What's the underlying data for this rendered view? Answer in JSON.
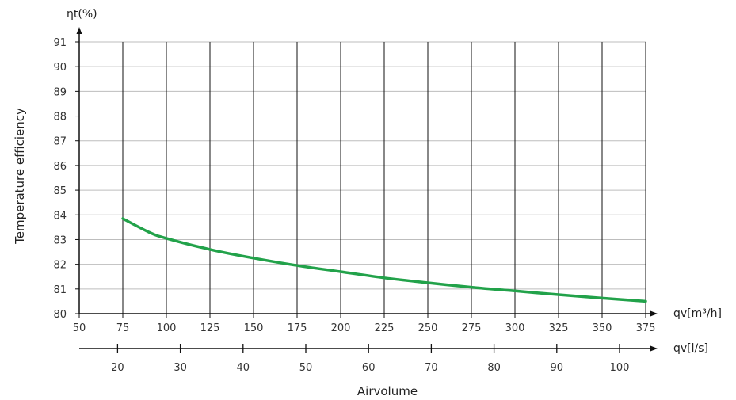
{
  "chart_data": {
    "type": "line",
    "ylabel": "Temperature efficiency",
    "y_unit_label": "ηt(%)",
    "xlabel": "Airvolume",
    "x_primary_unit": "qv[m³/h]",
    "x_secondary_unit": "qv[l/s]",
    "xlim": [
      50,
      375
    ],
    "ylim": [
      80,
      91
    ],
    "x_ticks": [
      50,
      75,
      100,
      125,
      150,
      175,
      200,
      225,
      250,
      275,
      300,
      325,
      350,
      375
    ],
    "y_ticks": [
      80,
      81,
      82,
      83,
      84,
      85,
      86,
      87,
      88,
      89,
      90,
      91
    ],
    "x2_ticks": [
      20,
      30,
      40,
      50,
      60,
      70,
      80,
      90,
      100
    ],
    "grid": true,
    "series": [
      {
        "color": "#22a24a",
        "x": [
          75,
          90,
          100,
          125,
          150,
          175,
          200,
          225,
          250,
          275,
          300,
          325,
          350,
          375
        ],
        "y": [
          83.85,
          83.3,
          83.05,
          82.6,
          82.25,
          81.95,
          81.7,
          81.45,
          81.25,
          81.07,
          80.92,
          80.77,
          80.63,
          80.5
        ]
      }
    ]
  }
}
